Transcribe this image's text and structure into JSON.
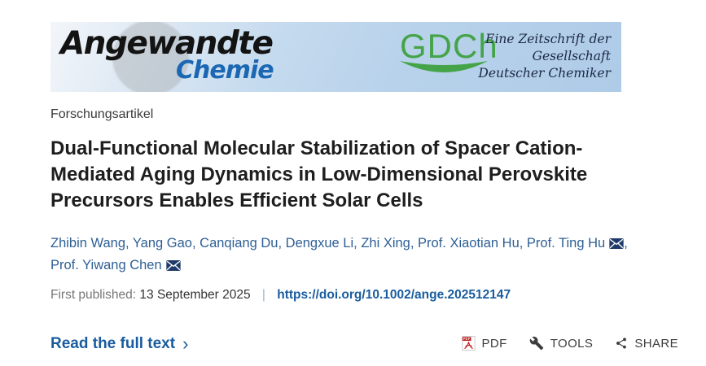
{
  "banner": {
    "angewandte": "Angewandte",
    "chemie": "Chemie",
    "gdch": "GDCh",
    "tagline_lines": [
      "Eine Zeitschrift der",
      "Gesellschaft",
      "Deutscher Chemiker"
    ],
    "colors": {
      "background_blue": "#b8d2eb",
      "chemie_blue": "#1b67b3",
      "gdch_green": "#45a449",
      "tagline_navy": "#1c2743"
    }
  },
  "article": {
    "type_label": "Forschungsartikel",
    "title": "Dual-Functional Molecular Stabilization of Spacer Cation-Mediated Aging Dynamics in Low-Dimensional Perovskite Precursors Enables Efficient Solar Cells",
    "title_lines": [
      "Dual-Functional Molecular Stabilization of Spacer Cation-",
      "Mediated Aging Dynamics in Low-Dimensional Perovskite",
      "Precursors Enables Efficient Solar Cells"
    ],
    "authors": [
      {
        "name": "Zhibin Wang",
        "mail": false,
        "break_after": false
      },
      {
        "name": "Yang Gao",
        "mail": false,
        "break_after": false
      },
      {
        "name": "Canqiang Du",
        "mail": false,
        "break_after": false
      },
      {
        "name": "Dengxue Li",
        "mail": false,
        "break_after": false
      },
      {
        "name": "Zhi Xing",
        "mail": false,
        "break_after": false
      },
      {
        "name": "Prof. Xiaotian Hu",
        "mail": false,
        "break_after": false
      },
      {
        "name": "Prof. Ting Hu",
        "mail": true,
        "break_after": true
      },
      {
        "name": "Prof. Yiwang Chen",
        "mail": true,
        "break_after": false
      }
    ],
    "first_published_label": "First published:",
    "first_published_date": "13 September 2025",
    "separator": "|",
    "doi": "https://doi.org/10.1002/ange.202512147"
  },
  "footer": {
    "read_full_text": "Read the full text",
    "chevron": "›",
    "actions": [
      {
        "label": "PDF",
        "icon": "pdf-icon"
      },
      {
        "label": "TOOLS",
        "icon": "wrench-icon"
      },
      {
        "label": "SHARE",
        "icon": "share-icon"
      }
    ]
  },
  "colors": {
    "author_blue": "#2e5f95",
    "link_blue": "#1a5c9e",
    "label_gray": "#767676",
    "text_dark": "#333333",
    "action_gray": "#3d3d3d"
  }
}
